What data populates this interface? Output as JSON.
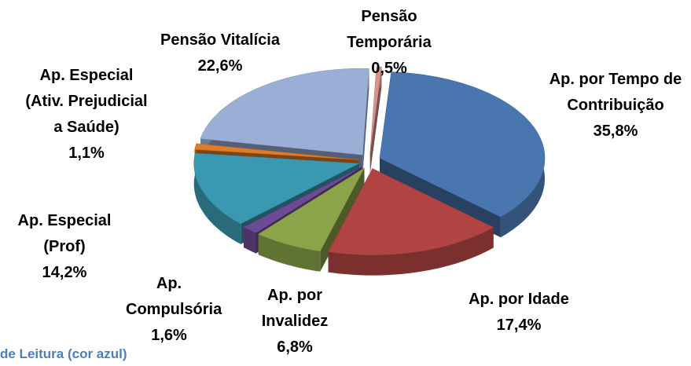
{
  "chart_data": {
    "type": "pie3d",
    "categories": [
      "Ap. por Tempo de Contribuição",
      "Ap. por Idade",
      "Ap. por Invalidez",
      "Ap. Compulsória",
      "Ap. Especial (Prof)",
      "Ap. Especial (Ativ. Prejudicial a Saúde)",
      "Pensão Vitalícia",
      "Pensão Temporária"
    ],
    "values": [
      35.8,
      17.4,
      6.8,
      1.6,
      14.2,
      1.1,
      22.6,
      0.5
    ],
    "value_labels": [
      "35,8%",
      "17,4%",
      "6,8%",
      "1,6%",
      "14,2%",
      "1,1%",
      "22,6%",
      "0,5%"
    ],
    "colors": [
      "#4a76b0",
      "#b14442",
      "#8ba449",
      "#6e4a95",
      "#3a98b0",
      "#e07b2a",
      "#9aaed6",
      "#d9928e"
    ],
    "annotation": "de Leitura (cor azul)"
  }
}
